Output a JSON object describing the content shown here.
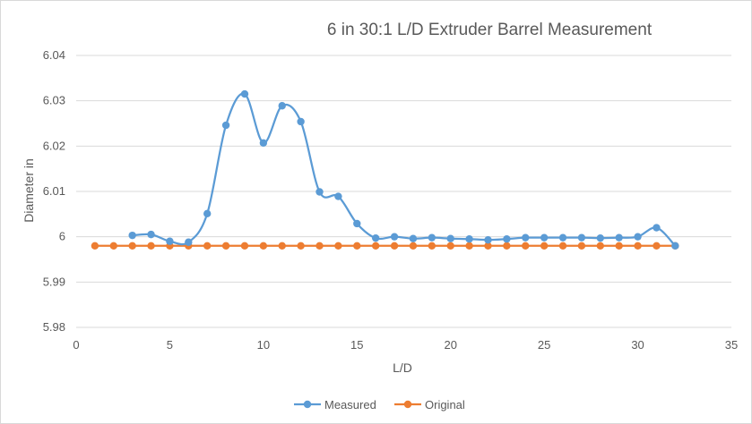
{
  "chart_data": {
    "type": "line",
    "title": "6 in 30:1 L/D Extruder Barrel Measurement",
    "xlabel": "L/D",
    "ylabel": "Diameter in",
    "xlim": [
      0,
      35
    ],
    "ylim": [
      5.98,
      6.04
    ],
    "x_ticks": [
      "0",
      "5",
      "10",
      "15",
      "20",
      "25",
      "30",
      "35"
    ],
    "y_ticks": [
      "5.98",
      "5.99",
      "6",
      "6.01",
      "6.02",
      "6.03",
      "6.04"
    ],
    "grid": "horizontal",
    "legend_position": "bottom",
    "series": [
      {
        "name": "Measured",
        "color": "#5b9bd5",
        "smooth": true,
        "x": [
          3,
          4,
          5,
          6,
          7,
          8,
          9,
          10,
          11,
          12,
          13,
          14,
          15,
          16,
          17,
          18,
          19,
          20,
          21,
          22,
          23,
          24,
          25,
          26,
          27,
          28,
          29,
          30,
          31,
          32
        ],
        "y": [
          6.0003,
          6.0005,
          5.999,
          5.9988,
          6.0051,
          6.0246,
          6.0315,
          6.0207,
          6.0289,
          6.0254,
          6.0099,
          6.0089,
          6.0029,
          5.9997,
          6.0,
          5.9996,
          5.9998,
          5.9996,
          5.9995,
          5.9993,
          5.9995,
          5.9998,
          5.9998,
          5.9998,
          5.9998,
          5.9997,
          5.9998,
          6.0,
          6.002,
          5.998
        ]
      },
      {
        "name": "Original",
        "color": "#ed7d31",
        "smooth": false,
        "x": [
          1,
          2,
          3,
          4,
          5,
          6,
          7,
          8,
          9,
          10,
          11,
          12,
          13,
          14,
          15,
          16,
          17,
          18,
          19,
          20,
          21,
          22,
          23,
          24,
          25,
          26,
          27,
          28,
          29,
          30,
          31,
          32
        ],
        "y": [
          5.998,
          5.998,
          5.998,
          5.998,
          5.998,
          5.998,
          5.998,
          5.998,
          5.998,
          5.998,
          5.998,
          5.998,
          5.998,
          5.998,
          5.998,
          5.998,
          5.998,
          5.998,
          5.998,
          5.998,
          5.998,
          5.998,
          5.998,
          5.998,
          5.998,
          5.998,
          5.998,
          5.998,
          5.998,
          5.998,
          5.998,
          5.998
        ]
      }
    ]
  },
  "colors": {
    "gridline": "#d9d9d9",
    "axis_text": "#595959"
  }
}
